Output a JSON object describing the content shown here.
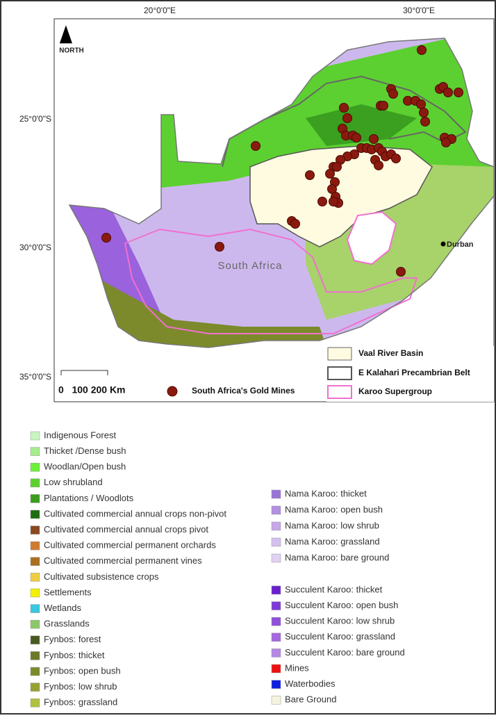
{
  "map": {
    "lon_labels": [
      "20°0'0\"E",
      "30°0'0\"E"
    ],
    "lat_labels": [
      "25°0'0\"S",
      "30°0'0\"S",
      "35°0'0\"S"
    ],
    "north": "NORTH",
    "country": "South Africa",
    "city": "Durban",
    "scale": "0   100 200 Km",
    "legend": {
      "mines": "South Africa's Gold Mines",
      "vaal": "Vaal River Basin",
      "kalahari": "E Kalahari Precambrian Belt",
      "karoo": "Karoo Supergroup"
    }
  },
  "landcover_legend": {
    "left": [
      {
        "label": "Indigenous Forest",
        "color": "#c8f5c0"
      },
      {
        "label": "Thicket /Dense bush",
        "color": "#a4ec8c"
      },
      {
        "label": "Woodlan/Open bush",
        "color": "#6ef03a"
      },
      {
        "label": "Low shrubland",
        "color": "#5ad22c"
      },
      {
        "label": "Plantations / Woodlots",
        "color": "#3a9e1a"
      },
      {
        "label": "Cultivated commercial annual crops non-pivot",
        "color": "#1d6e10"
      },
      {
        "label": "Cultivated commercial annual crops pivot",
        "color": "#8a4a1e"
      },
      {
        "label": "Cultivated commercial permanent orchards",
        "color": "#d07a30"
      },
      {
        "label": "Cultivated commercial permanent vines",
        "color": "#a87020"
      },
      {
        "label": "Cultivated subsistence crops",
        "color": "#f0cc40"
      },
      {
        "label": "Settlements",
        "color": "#f4f000"
      },
      {
        "label": "Wetlands",
        "color": "#38c8e0"
      },
      {
        "label": "Grasslands",
        "color": "#8cc86a"
      },
      {
        "label": "Fynbos: forest",
        "color": "#4a5a20"
      },
      {
        "label": "Fynbos: thicket",
        "color": "#6a7a28"
      },
      {
        "label": "Fynbos: open bush",
        "color": "#7c8a2c"
      },
      {
        "label": "Fynbos: low shrub",
        "color": "#96a230"
      },
      {
        "label": "Fynbos: grassland",
        "color": "#b0c040"
      }
    ],
    "right": [
      {
        "label": "Nama Karoo: thicket",
        "color": "#9a74d8"
      },
      {
        "label": "Nama Karoo: open bush",
        "color": "#b090e0"
      },
      {
        "label": "Nama Karoo: low shrub",
        "color": "#c4a8e8"
      },
      {
        "label": "Nama Karoo: grassland",
        "color": "#d4c0ee"
      },
      {
        "label": "Nama Karoo: bare ground",
        "color": "#e0d0f2"
      },
      {
        "label": "Succulent Karoo: thicket",
        "color": "#6a20d0"
      },
      {
        "label": "Succulent Karoo: open bush",
        "color": "#7e3ad8"
      },
      {
        "label": "Succulent Karoo: low shrub",
        "color": "#9050dc"
      },
      {
        "label": "Succulent Karoo: grassland",
        "color": "#a468e0"
      },
      {
        "label": "Succulent Karoo: bare ground",
        "color": "#b488e4"
      },
      {
        "label": "Mines",
        "color": "#ee1010"
      },
      {
        "label": "Waterbodies",
        "color": "#1020e0"
      },
      {
        "label": "Bare Ground",
        "color": "#f4f4e0"
      }
    ]
  }
}
